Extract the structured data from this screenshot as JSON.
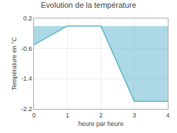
{
  "chart_data": {
    "type": "area",
    "title": "Evolution de la température",
    "xlabel": "heure par heure",
    "ylabel": "Température en °C",
    "x": [
      0,
      1,
      2,
      3,
      3.6,
      4
    ],
    "values": [
      -0.5,
      0.0,
      0.0,
      -2.0,
      -2.0,
      -2.0
    ],
    "color": "#5ab4cc",
    "xlim": [
      0,
      4
    ],
    "xticks": [
      0,
      1,
      2,
      3,
      4
    ],
    "ylim": [
      -2.2,
      0.2
    ],
    "yticks": [
      0.2,
      -0.6,
      -1.4,
      -2.2
    ],
    "grid": true
  }
}
